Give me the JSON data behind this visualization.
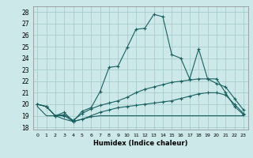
{
  "xlabel": "Humidex (Indice chaleur)",
  "background_color": "#cce8e8",
  "grid_color": "#a8cccc",
  "line_color": "#1a6060",
  "xlim": [
    -0.5,
    23.5
  ],
  "ylim": [
    17.8,
    28.5
  ],
  "xticks": [
    0,
    1,
    2,
    3,
    4,
    5,
    6,
    7,
    8,
    9,
    10,
    11,
    12,
    13,
    14,
    15,
    16,
    17,
    18,
    19,
    20,
    21,
    22,
    23
  ],
  "yticks": [
    18,
    19,
    20,
    21,
    22,
    23,
    24,
    25,
    26,
    27,
    28
  ],
  "series_data": [
    {
      "x": [
        0,
        1,
        2,
        3,
        4,
        5,
        6,
        7,
        8,
        9,
        10,
        11,
        12,
        13,
        14,
        15,
        16,
        17,
        18,
        19,
        20,
        21,
        22,
        23
      ],
      "y": [
        20.0,
        19.8,
        19.0,
        19.3,
        18.5,
        19.4,
        19.7,
        21.1,
        23.2,
        23.3,
        24.9,
        26.5,
        26.6,
        27.8,
        27.6,
        24.3,
        24.0,
        22.2,
        24.8,
        22.2,
        22.2,
        21.0,
        19.8,
        19.1
      ],
      "marker": true
    },
    {
      "x": [
        0,
        1,
        2,
        3,
        4,
        5,
        6,
        7,
        8,
        9,
        10,
        11,
        12,
        13,
        14,
        15,
        16,
        17,
        18,
        19,
        20,
        21,
        22,
        23
      ],
      "y": [
        20.0,
        19.8,
        19.0,
        19.1,
        18.6,
        19.2,
        19.6,
        19.9,
        20.1,
        20.3,
        20.6,
        21.0,
        21.3,
        21.5,
        21.7,
        21.9,
        22.0,
        22.1,
        22.2,
        22.2,
        21.8,
        21.5,
        20.5,
        19.5
      ],
      "marker": true
    },
    {
      "x": [
        0,
        1,
        2,
        3,
        4,
        5,
        6,
        7,
        8,
        9,
        10,
        11,
        12,
        13,
        14,
        15,
        16,
        17,
        18,
        19,
        20,
        21,
        22,
        23
      ],
      "y": [
        19.8,
        19.0,
        19.0,
        18.7,
        18.5,
        18.7,
        18.9,
        19.0,
        19.0,
        19.0,
        19.0,
        19.0,
        19.0,
        19.0,
        19.0,
        19.0,
        19.0,
        19.0,
        19.0,
        19.0,
        19.0,
        19.0,
        19.0,
        19.0
      ],
      "marker": false
    },
    {
      "x": [
        0,
        1,
        2,
        3,
        4,
        5,
        6,
        7,
        8,
        9,
        10,
        11,
        12,
        13,
        14,
        15,
        16,
        17,
        18,
        19,
        20,
        21,
        22,
        23
      ],
      "y": [
        20.0,
        19.8,
        19.0,
        19.0,
        18.5,
        18.7,
        19.0,
        19.3,
        19.5,
        19.7,
        19.8,
        19.9,
        20.0,
        20.1,
        20.2,
        20.3,
        20.5,
        20.7,
        20.9,
        21.0,
        21.0,
        20.8,
        20.0,
        19.2
      ],
      "marker": true
    }
  ]
}
